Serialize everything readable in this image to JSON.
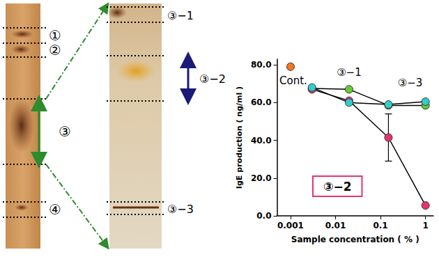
{
  "plates": [
    {
      "bands": [
        "①",
        "②",
        "③",
        "④"
      ]
    },
    {
      "bands": [
        "③−1",
        "③−2",
        "③−3"
      ]
    }
  ],
  "chart_data": {
    "type": "line",
    "x_label": "Sample concentration ( % )",
    "y_label": "IgE production ( ng/ml )",
    "log": "x",
    "grid": false,
    "xlim": [
      0.0005,
      1.5
    ],
    "xticks": [
      0.001,
      0.01,
      0.1,
      1
    ],
    "ylim": [
      0,
      83
    ],
    "yticks": [
      {
        "value": 0,
        "label": "0.0"
      },
      {
        "value": 20,
        "label": "20.0"
      },
      {
        "value": 40,
        "label": "40.0"
      },
      {
        "value": 60,
        "label": "60.0"
      },
      {
        "value": 80,
        "label": "80.0"
      }
    ],
    "series": [
      {
        "name": "Cont.",
        "color": "#f07820",
        "marker": "circle",
        "x": [
          0.001
        ],
        "values": [
          79
        ]
      },
      {
        "name": "③−1",
        "color": "#66cc33",
        "marker": "circle",
        "x": [
          0.003,
          0.02,
          0.15,
          1
        ],
        "values": [
          67.5,
          67,
          58.5,
          58.5
        ]
      },
      {
        "name": "③−2",
        "color": "#e8336e",
        "marker": "circle",
        "x": [
          0.003,
          0.02,
          0.15,
          1
        ],
        "values": [
          67,
          61,
          41.5,
          5.5
        ],
        "error": [
          null,
          null,
          12.5,
          null
        ]
      },
      {
        "name": "③−3",
        "color": "#33cccc",
        "marker": "circle",
        "x": [
          0.003,
          0.02,
          0.15,
          1
        ],
        "values": [
          68,
          60,
          59,
          60.5
        ]
      }
    ]
  }
}
